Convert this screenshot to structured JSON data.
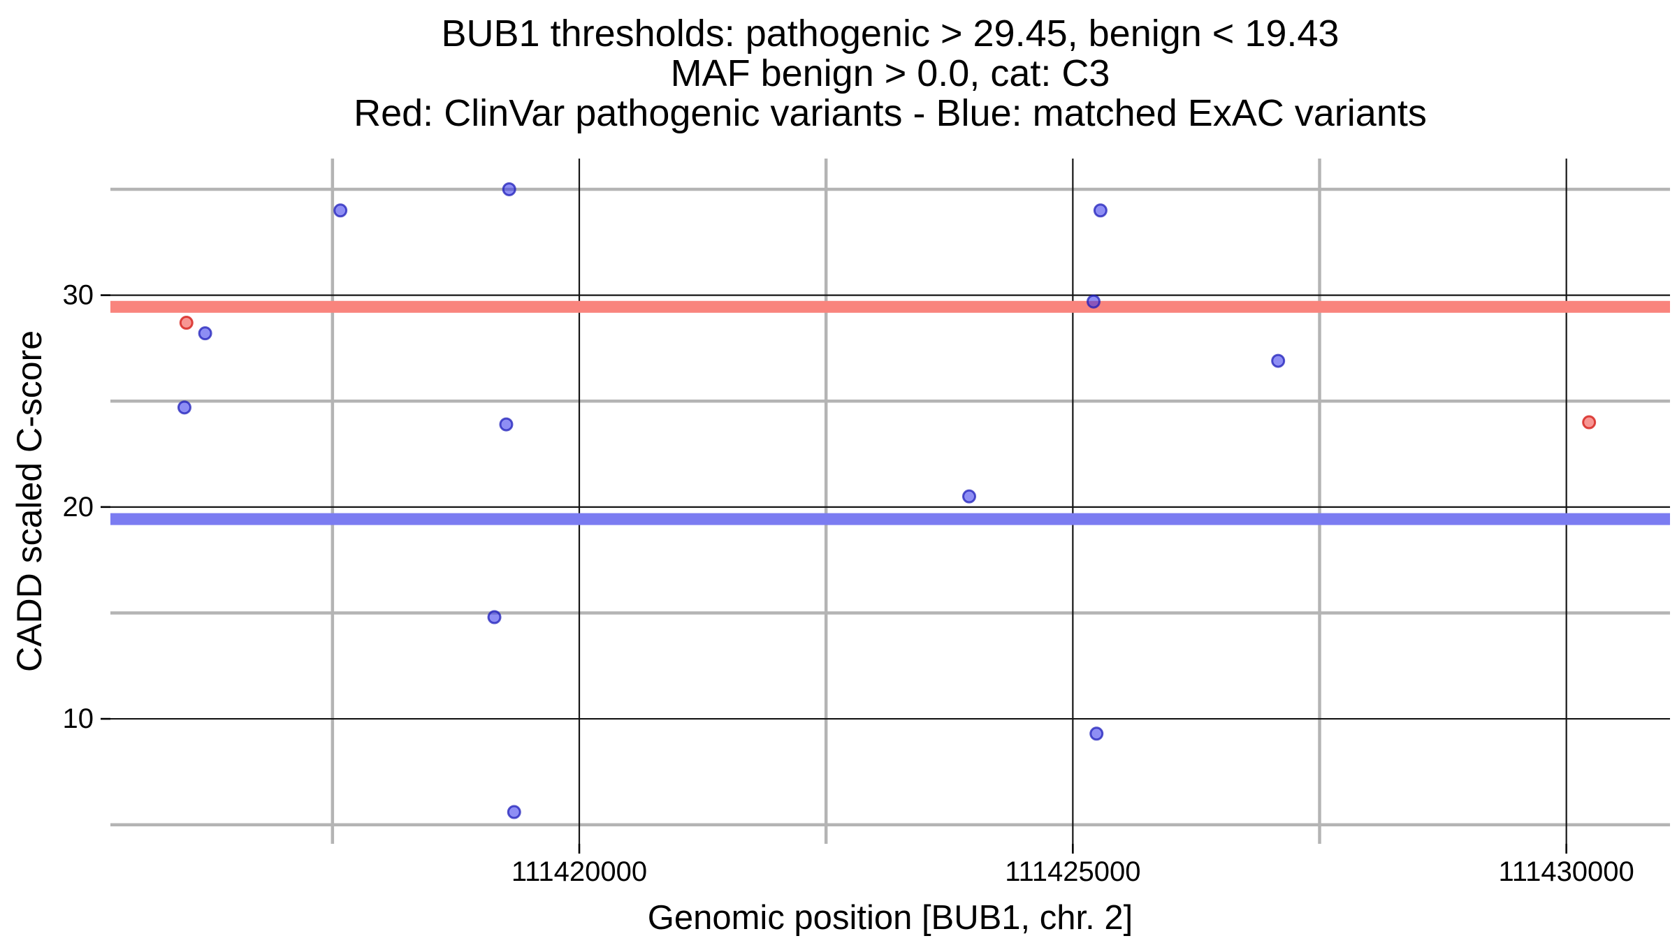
{
  "title": {
    "line1": "BUB1 thresholds: pathogenic > 29.45, benign < 19.43",
    "line2": "MAF benign > 0.0, cat: C3",
    "line3": "Red: ClinVar pathogenic variants - Blue: matched ExAC variants"
  },
  "chart_data": {
    "type": "scatter",
    "xlabel": "Genomic position [BUB1, chr. 2]",
    "ylabel": "CADD scaled C-score",
    "x_domain": [
      111415250,
      111431050
    ],
    "y_domain": [
      4.1,
      36.45
    ],
    "x_major_ticks": [
      111420000,
      111425000,
      111430000
    ],
    "x_tick_labels": [
      "111420000",
      "111425000",
      "111430000"
    ],
    "x_minor_ticks": [
      111417500,
      111422500,
      111427500
    ],
    "y_major_ticks": [
      10,
      20,
      30
    ],
    "y_tick_labels": [
      "10",
      "20",
      "30"
    ],
    "y_minor_ticks": [
      5,
      15,
      25,
      35
    ],
    "grid": "on",
    "legend_position": "none",
    "thresholds": {
      "pathogenic_gt": 29.45,
      "benign_lt": 19.43,
      "maf_benign_gt": 0.0,
      "category": "C3"
    },
    "bands": [
      {
        "label": "pathogenic-threshold-band",
        "value": 29.45,
        "color": "#f9847d"
      },
      {
        "label": "benign-threshold-band",
        "value": 19.43,
        "color": "#7b7cf1"
      }
    ],
    "series": [
      {
        "name": "ClinVar pathogenic variants",
        "color_key": "red",
        "points": [
          {
            "pos": 111416020,
            "cadd": 28.7
          },
          {
            "pos": 111430230,
            "cadd": 24.0
          }
        ]
      },
      {
        "name": "matched ExAC variants",
        "color_key": "blue",
        "points": [
          {
            "pos": 111416210,
            "cadd": 28.2
          },
          {
            "pos": 111416000,
            "cadd": 24.7
          },
          {
            "pos": 111417580,
            "cadd": 34.0
          },
          {
            "pos": 111419290,
            "cadd": 35.0
          },
          {
            "pos": 111419260,
            "cadd": 23.9
          },
          {
            "pos": 111419140,
            "cadd": 14.8
          },
          {
            "pos": 111419340,
            "cadd": 5.6
          },
          {
            "pos": 111423950,
            "cadd": 20.5
          },
          {
            "pos": 111425210,
            "cadd": 29.7
          },
          {
            "pos": 111425280,
            "cadd": 34.0
          },
          {
            "pos": 111425240,
            "cadd": 9.3
          },
          {
            "pos": 111427080,
            "cadd": 26.9
          }
        ]
      }
    ]
  },
  "colors": {
    "background": "#ffffff",
    "grid_minor": "#b4b4b4",
    "grid_major": "#161616",
    "tick": "#000000",
    "text": "#000000",
    "band_red": "#f9847d",
    "band_blue": "#7b7cf1",
    "point_red_fill": "rgba(240,45,40,0.50)",
    "point_red_stroke": "rgba(213,30,25,0.80)",
    "point_blue_fill": "rgba(50,50,235,0.55)",
    "point_blue_stroke": "rgba(30,30,185,0.75)"
  }
}
